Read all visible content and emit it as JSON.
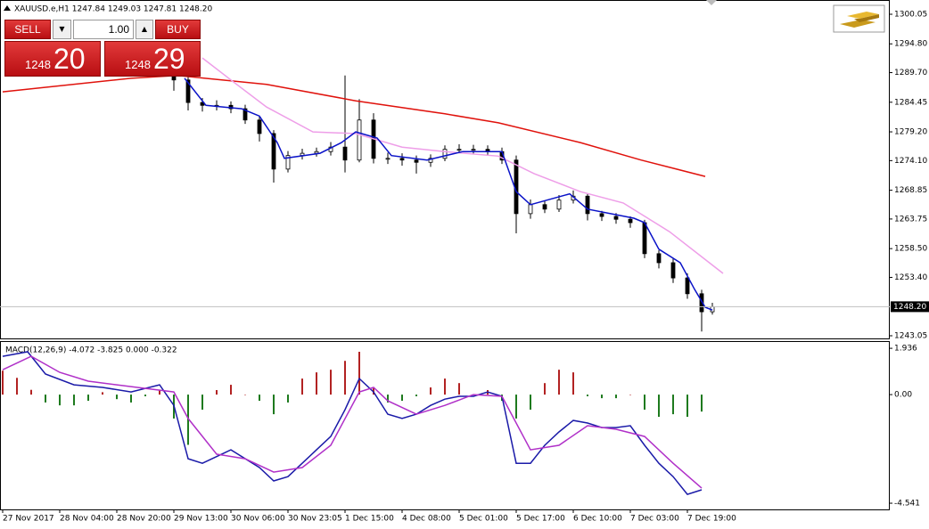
{
  "trade_panel": {
    "sell": "SELL",
    "buy": "BUY",
    "lot": "1.00",
    "sell_big": "1248",
    "sell_pips": "20",
    "buy_big": "1248",
    "buy_pips": "29"
  },
  "chart_data": [
    {
      "type": "candlestick",
      "title": "XAUUSD.e,H1  1247.84 1249.03 1247.81 1248.20",
      "x": [
        48,
        52,
        56,
        60,
        64,
        68,
        72,
        76,
        80,
        84,
        88,
        92,
        96,
        100,
        104,
        108,
        112,
        116,
        120,
        124,
        128,
        132,
        136,
        140,
        144,
        148,
        152,
        156,
        160,
        164,
        168,
        172,
        176,
        180,
        184,
        188,
        192,
        196,
        199
      ],
      "open": [
        1289.5,
        1288.4,
        1284.4,
        1283.9,
        1283.9,
        1283.3,
        1281.3,
        1278.9,
        1272.6,
        1275.0,
        1275.4,
        1275.7,
        1276.5,
        1274.2,
        1281.3,
        1274.5,
        1274.5,
        1274.2,
        1273.8,
        1274.5,
        1276.1,
        1276.1,
        1276.1,
        1275.7,
        1274.2,
        1264.7,
        1266.3,
        1265.5,
        1267.1,
        1267.8,
        1264.7,
        1264.2,
        1263.7,
        1263.1,
        1257.6,
        1256.0,
        1253.3,
        1250.5,
        1247.3
      ],
      "high": [
        1290.2,
        1289.0,
        1285.2,
        1284.8,
        1284.6,
        1284.0,
        1282.0,
        1279.5,
        1275.8,
        1276.2,
        1276.4,
        1277.4,
        1289.2,
        1285.0,
        1282.5,
        1275.5,
        1275.4,
        1275.0,
        1275.2,
        1276.8,
        1277.0,
        1276.9,
        1276.8,
        1276.4,
        1275.0,
        1267.2,
        1267.0,
        1268.0,
        1268.8,
        1268.2,
        1265.2,
        1264.8,
        1264.2,
        1263.6,
        1258.2,
        1256.8,
        1254.1,
        1251.2,
        1248.9
      ],
      "low": [
        1286.5,
        1283.0,
        1282.8,
        1283.0,
        1282.5,
        1280.6,
        1277.5,
        1270.2,
        1272.0,
        1274.3,
        1274.8,
        1275.0,
        1272.0,
        1273.8,
        1273.6,
        1273.5,
        1273.2,
        1271.8,
        1273.0,
        1274.0,
        1275.4,
        1275.3,
        1275.0,
        1273.5,
        1261.2,
        1263.8,
        1264.8,
        1265.0,
        1266.5,
        1263.5,
        1263.4,
        1262.9,
        1262.2,
        1256.8,
        1255.0,
        1252.4,
        1249.6,
        1243.8,
        1246.8
      ],
      "close": [
        1288.4,
        1284.4,
        1283.9,
        1283.9,
        1283.3,
        1281.3,
        1278.9,
        1272.6,
        1275.0,
        1275.4,
        1275.7,
        1276.5,
        1274.2,
        1281.3,
        1274.5,
        1274.5,
        1274.2,
        1273.8,
        1274.5,
        1276.1,
        1276.1,
        1276.1,
        1275.7,
        1274.2,
        1264.7,
        1266.3,
        1265.5,
        1267.1,
        1267.8,
        1264.7,
        1264.2,
        1263.7,
        1263.1,
        1257.6,
        1256.0,
        1253.3,
        1250.5,
        1247.3,
        1248.2
      ],
      "up_color": "#ffffff",
      "down_color": "#000000",
      "series": [
        {
          "color": "#e0120c",
          "x": [
            0,
            36,
            49,
            74,
            99,
            124,
            139,
            162,
            179,
            197
          ],
          "values": [
            1286.3,
            1288.7,
            1289.2,
            1287.6,
            1284.7,
            1282.4,
            1280.8,
            1277.3,
            1274.2,
            1271.3
          ]
        },
        {
          "color": "#ee9ee8",
          "x": [
            56,
            64,
            74,
            87,
            99,
            112,
            124,
            139,
            149,
            162,
            174,
            187,
            202
          ],
          "values": [
            1292.3,
            1288.4,
            1283.6,
            1279.2,
            1278.9,
            1276.5,
            1275.7,
            1274.9,
            1271.8,
            1268.6,
            1266.6,
            1261.5,
            1254.1
          ]
        },
        {
          "color": "#0a12c8",
          "x": [
            51,
            57,
            67,
            72,
            77,
            79,
            89,
            95,
            99,
            105,
            109,
            119,
            129,
            140,
            144,
            148,
            159,
            164,
            177,
            180,
            184,
            190,
            194,
            197,
            199
          ],
          "values": [
            1288.7,
            1283.9,
            1283.3,
            1282.0,
            1277.3,
            1274.5,
            1275.4,
            1277.3,
            1279.2,
            1278.1,
            1275.0,
            1274.2,
            1275.7,
            1275.7,
            1268.6,
            1266.3,
            1268.2,
            1265.5,
            1263.9,
            1263.1,
            1258.4,
            1256.0,
            1251.3,
            1248.1,
            1247.6
          ]
        }
      ],
      "xlim": [
        0,
        248.75
      ],
      "ylim": [
        1242.42,
        1302.26
      ],
      "yticks": [
        1300.05,
        {
          "value": 1294.8,
          "label": "1294.80"
        },
        {
          "value": 1289.7,
          "label": "1289.70"
        },
        1284.45,
        {
          "value": 1279.2,
          "label": "1279.20"
        },
        {
          "value": 1274.1,
          "label": "1274.10"
        },
        1268.85,
        1263.75,
        {
          "value": 1258.5,
          "label": "1258.50"
        },
        {
          "value": 1253.4,
          "label": "1253.40"
        },
        1243.05
      ],
      "current_price": {
        "value": 1248.2,
        "label": "1248.20"
      }
    },
    {
      "type": "macd",
      "title": "MACD(12,26,9) -4.072 -3.825 0.000 -0.322",
      "histogram": {
        "up_color": "#b22222",
        "down_color": "#1e7a1e",
        "x": [
          0,
          4,
          8,
          12,
          16,
          20,
          24,
          28,
          32,
          36,
          40,
          44,
          48,
          52,
          56,
          60,
          64,
          68,
          72,
          76,
          80,
          84,
          88,
          92,
          96,
          100,
          104,
          108,
          112,
          116,
          120,
          124,
          128,
          132,
          136,
          140,
          144,
          148,
          152,
          156,
          160,
          164,
          168,
          172,
          176,
          180,
          184,
          188,
          192,
          196
        ],
        "values": [
          1.0,
          0.7,
          0.2,
          -0.33,
          -0.45,
          -0.45,
          -0.26,
          0.1,
          -0.19,
          -0.33,
          -0.07,
          0.19,
          -1.0,
          -2.1,
          -0.63,
          0.19,
          0.41,
          0,
          -0.26,
          -0.82,
          -0.33,
          0.67,
          0.93,
          1.04,
          1.41,
          1.79,
          0.3,
          -0.33,
          -0.26,
          -0.07,
          0.3,
          0.67,
          0.48,
          0,
          0.19,
          -0.26,
          -1.0,
          -0.63,
          0.48,
          1.04,
          0.93,
          -0.07,
          -0.15,
          -0.15,
          0,
          -0.63,
          -0.93,
          -0.82,
          -0.93,
          -0.71
        ]
      },
      "series": [
        {
          "color": "#1a1aa8",
          "x": [
            0,
            7,
            12,
            20,
            28,
            36,
            44,
            48,
            52,
            56,
            64,
            72,
            76,
            80,
            88,
            92,
            96,
            100,
            104,
            108,
            112,
            116,
            120,
            124,
            128,
            132,
            136,
            140,
            144,
            148,
            152,
            156,
            160,
            164,
            168,
            172,
            176,
            180,
            184,
            188,
            192,
            196
          ],
          "values": [
            1.6,
            1.79,
            0.86,
            0.41,
            0.3,
            0.11,
            0.41,
            -0.45,
            -2.68,
            -2.87,
            -2.31,
            -3.05,
            -3.61,
            -3.43,
            -2.31,
            -1.75,
            -0.63,
            0.67,
            0.11,
            -0.82,
            -1.0,
            -0.82,
            -0.45,
            -0.19,
            -0.07,
            -0.07,
            0.11,
            -0.07,
            -2.87,
            -2.87,
            -2.12,
            -1.56,
            -1.08,
            -1.19,
            -1.38,
            -1.38,
            -1.3,
            -2.12,
            -2.87,
            -3.43,
            -4.17,
            -3.98
          ]
        },
        {
          "color": "#b030c8",
          "x": [
            0,
            8,
            16,
            24,
            32,
            40,
            48,
            52,
            60,
            68,
            76,
            84,
            92,
            100,
            104,
            108,
            116,
            124,
            132,
            140,
            148,
            156,
            164,
            172,
            180,
            188,
            196
          ],
          "values": [
            1.04,
            1.6,
            0.93,
            0.56,
            0.41,
            0.26,
            0.11,
            -1.0,
            -2.49,
            -2.68,
            -3.24,
            -3.05,
            -2.12,
            0.11,
            0.3,
            -0.26,
            -0.82,
            -0.45,
            0,
            -0.07,
            -2.31,
            -2.12,
            -1.3,
            -1.45,
            -1.75,
            -2.87,
            -3.91
          ]
        }
      ],
      "xlim": [
        0,
        248.75
      ],
      "ylim": [
        -4.8,
        2.2
      ],
      "yticks": [
        1.936,
        {
          "value": 0,
          "label": "0.00"
        },
        -4.541
      ],
      "xticks": [
        {
          "value": 0,
          "label": "27 Nov 2017"
        },
        {
          "value": 16,
          "label": "28 Nov 04:00"
        },
        {
          "value": 32,
          "label": "28 Nov 20:00"
        },
        {
          "value": 48,
          "label": "29 Nov 13:00"
        },
        {
          "value": 64,
          "label": "30 Nov 06:00"
        },
        {
          "value": 80,
          "label": "30 Nov 23:05"
        },
        {
          "value": 96,
          "label": "1 Dec 15:00"
        },
        {
          "value": 112,
          "label": "4 Dec 08:00"
        },
        {
          "value": 128,
          "label": "5 Dec 01:00"
        },
        {
          "value": 144,
          "label": "5 Dec 17:00"
        },
        {
          "value": 160,
          "label": "6 Dec 10:00"
        },
        {
          "value": 176,
          "label": "7 Dec 03:00"
        },
        {
          "value": 192,
          "label": "7 Dec 19:00"
        }
      ]
    }
  ]
}
